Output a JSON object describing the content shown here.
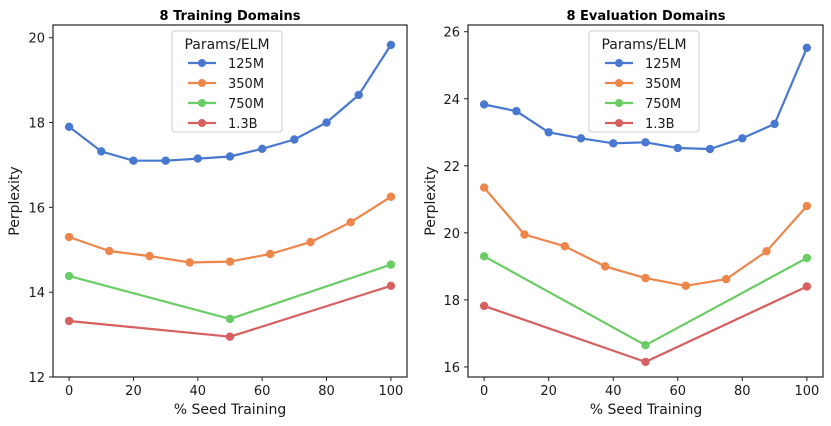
{
  "chart_data": [
    {
      "type": "line",
      "title": "8 Training Domains",
      "xlabel": "% Seed Training",
      "ylabel": "Perplexity",
      "xlim": [
        -5,
        105
      ],
      "ylim": [
        12,
        20.3
      ],
      "xticks": [
        0,
        20,
        40,
        60,
        80,
        100
      ],
      "yticks": [
        12,
        14,
        16,
        18,
        20
      ],
      "legend_title": "Params/ELM",
      "series": [
        {
          "name": "125M",
          "color": "#4878d0",
          "x": [
            0,
            10,
            20,
            30,
            40,
            50,
            60,
            70,
            80,
            90,
            100
          ],
          "y": [
            17.9,
            17.32,
            17.1,
            17.1,
            17.15,
            17.2,
            17.38,
            17.6,
            18.0,
            18.65,
            19.83
          ]
        },
        {
          "name": "350M",
          "color": "#ee854a",
          "x": [
            0,
            12.5,
            25,
            37.5,
            50,
            62.5,
            75,
            87.5,
            100
          ],
          "y": [
            15.3,
            14.97,
            14.85,
            14.7,
            14.72,
            14.9,
            15.18,
            15.65,
            16.25
          ]
        },
        {
          "name": "750M",
          "color": "#6acc64",
          "x": [
            0,
            50,
            100
          ],
          "y": [
            14.38,
            13.37,
            14.65
          ]
        },
        {
          "name": "1.3B",
          "color": "#d65f5f",
          "x": [
            0,
            50,
            100
          ],
          "y": [
            13.32,
            12.95,
            14.15
          ]
        }
      ]
    },
    {
      "type": "line",
      "title": "8 Evaluation Domains",
      "xlabel": "% Seed Training",
      "ylabel": "Perplexity",
      "xlim": [
        -5,
        105
      ],
      "ylim": [
        15.7,
        26.2
      ],
      "xticks": [
        0,
        20,
        40,
        60,
        80,
        100
      ],
      "yticks": [
        16,
        18,
        20,
        22,
        24,
        26
      ],
      "legend_title": "Params/ELM",
      "series": [
        {
          "name": "125M",
          "color": "#4878d0",
          "x": [
            0,
            10,
            20,
            30,
            40,
            50,
            60,
            70,
            80,
            90,
            100
          ],
          "y": [
            23.83,
            23.63,
            23.0,
            22.82,
            22.67,
            22.7,
            22.53,
            22.5,
            22.82,
            23.25,
            25.52
          ]
        },
        {
          "name": "350M",
          "color": "#ee854a",
          "x": [
            0,
            12.5,
            25,
            37.5,
            50,
            62.5,
            75,
            87.5,
            100
          ],
          "y": [
            21.35,
            19.95,
            19.6,
            19.0,
            18.65,
            18.42,
            18.62,
            19.45,
            20.8
          ]
        },
        {
          "name": "750M",
          "color": "#6acc64",
          "x": [
            0,
            50,
            100
          ],
          "y": [
            19.3,
            16.65,
            19.25
          ]
        },
        {
          "name": "1.3B",
          "color": "#d65f5f",
          "x": [
            0,
            50,
            100
          ],
          "y": [
            17.82,
            16.15,
            18.4
          ]
        }
      ]
    }
  ]
}
